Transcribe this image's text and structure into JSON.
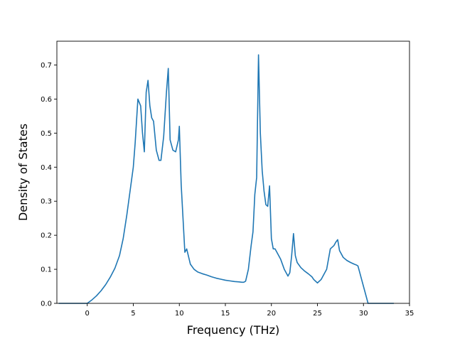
{
  "chart_data": {
    "type": "line",
    "title": "",
    "xlabel": "Frequency (THz)",
    "ylabel": "Density of States",
    "xlim": [
      -3.3,
      35
    ],
    "ylim": [
      0,
      0.77
    ],
    "xticks": [
      0,
      5,
      10,
      15,
      20,
      25,
      30,
      35
    ],
    "yticks": [
      0.0,
      0.1,
      0.2,
      0.3,
      0.4,
      0.5,
      0.6,
      0.7
    ],
    "xtick_labels": [
      "0",
      "5",
      "10",
      "15",
      "20",
      "25",
      "30",
      "35"
    ],
    "ytick_labels": [
      "0.0",
      "0.1",
      "0.2",
      "0.3",
      "0.4",
      "0.5",
      "0.6",
      "0.7"
    ],
    "grid": false,
    "legend": "none",
    "line_color": "#1f77b4",
    "series": [
      {
        "x": [
          -3.1,
          -1.0,
          0.0,
          0.5,
          1.0,
          1.5,
          2.0,
          2.5,
          3.0,
          3.5,
          3.9,
          4.3,
          4.7,
          5.0,
          5.2,
          5.5,
          5.8,
          6.0,
          6.2,
          6.4,
          6.6,
          6.8,
          7.0,
          7.2,
          7.5,
          7.8,
          8.0,
          8.3,
          8.6,
          8.8,
          9.0,
          9.3,
          9.6,
          9.9,
          10.0,
          10.2,
          10.4,
          10.6,
          10.8,
          11.2,
          11.6,
          12.0,
          12.5,
          13.0,
          13.5,
          14.0,
          14.5,
          15.0,
          15.5,
          16.0,
          16.5,
          16.8,
          17.0,
          17.2,
          17.5,
          17.8,
          18.0,
          18.2,
          18.4,
          18.6,
          18.8,
          19.0,
          19.2,
          19.4,
          19.6,
          19.8,
          20.0,
          20.2,
          20.4,
          20.6,
          21.0,
          21.4,
          21.8,
          22.0,
          22.2,
          22.4,
          22.6,
          22.8,
          23.2,
          23.6,
          24.0,
          24.4,
          24.6,
          25.0,
          25.4,
          25.8,
          26.0,
          26.4,
          26.8,
          27.0,
          27.2,
          27.4,
          27.8,
          28.2,
          28.6,
          29.0,
          29.2,
          29.4,
          29.8,
          30.2,
          30.5,
          31.0,
          32.0,
          33.3
        ],
        "y": [
          0.0,
          0.0,
          0.0,
          0.01,
          0.022,
          0.037,
          0.055,
          0.077,
          0.103,
          0.14,
          0.19,
          0.26,
          0.34,
          0.4,
          0.47,
          0.6,
          0.58,
          0.5,
          0.445,
          0.62,
          0.655,
          0.58,
          0.545,
          0.535,
          0.45,
          0.42,
          0.42,
          0.49,
          0.62,
          0.69,
          0.48,
          0.45,
          0.445,
          0.48,
          0.52,
          0.35,
          0.25,
          0.15,
          0.16,
          0.115,
          0.1,
          0.092,
          0.087,
          0.083,
          0.078,
          0.074,
          0.071,
          0.068,
          0.066,
          0.064,
          0.063,
          0.062,
          0.062,
          0.065,
          0.1,
          0.17,
          0.21,
          0.32,
          0.37,
          0.73,
          0.5,
          0.39,
          0.33,
          0.29,
          0.285,
          0.345,
          0.19,
          0.16,
          0.16,
          0.15,
          0.13,
          0.1,
          0.08,
          0.09,
          0.14,
          0.205,
          0.14,
          0.12,
          0.105,
          0.095,
          0.087,
          0.078,
          0.07,
          0.06,
          0.07,
          0.09,
          0.1,
          0.16,
          0.17,
          0.18,
          0.187,
          0.155,
          0.135,
          0.126,
          0.12,
          0.115,
          0.113,
          0.11,
          0.07,
          0.03,
          0.0,
          0.0,
          0.0,
          0.0
        ]
      }
    ]
  }
}
